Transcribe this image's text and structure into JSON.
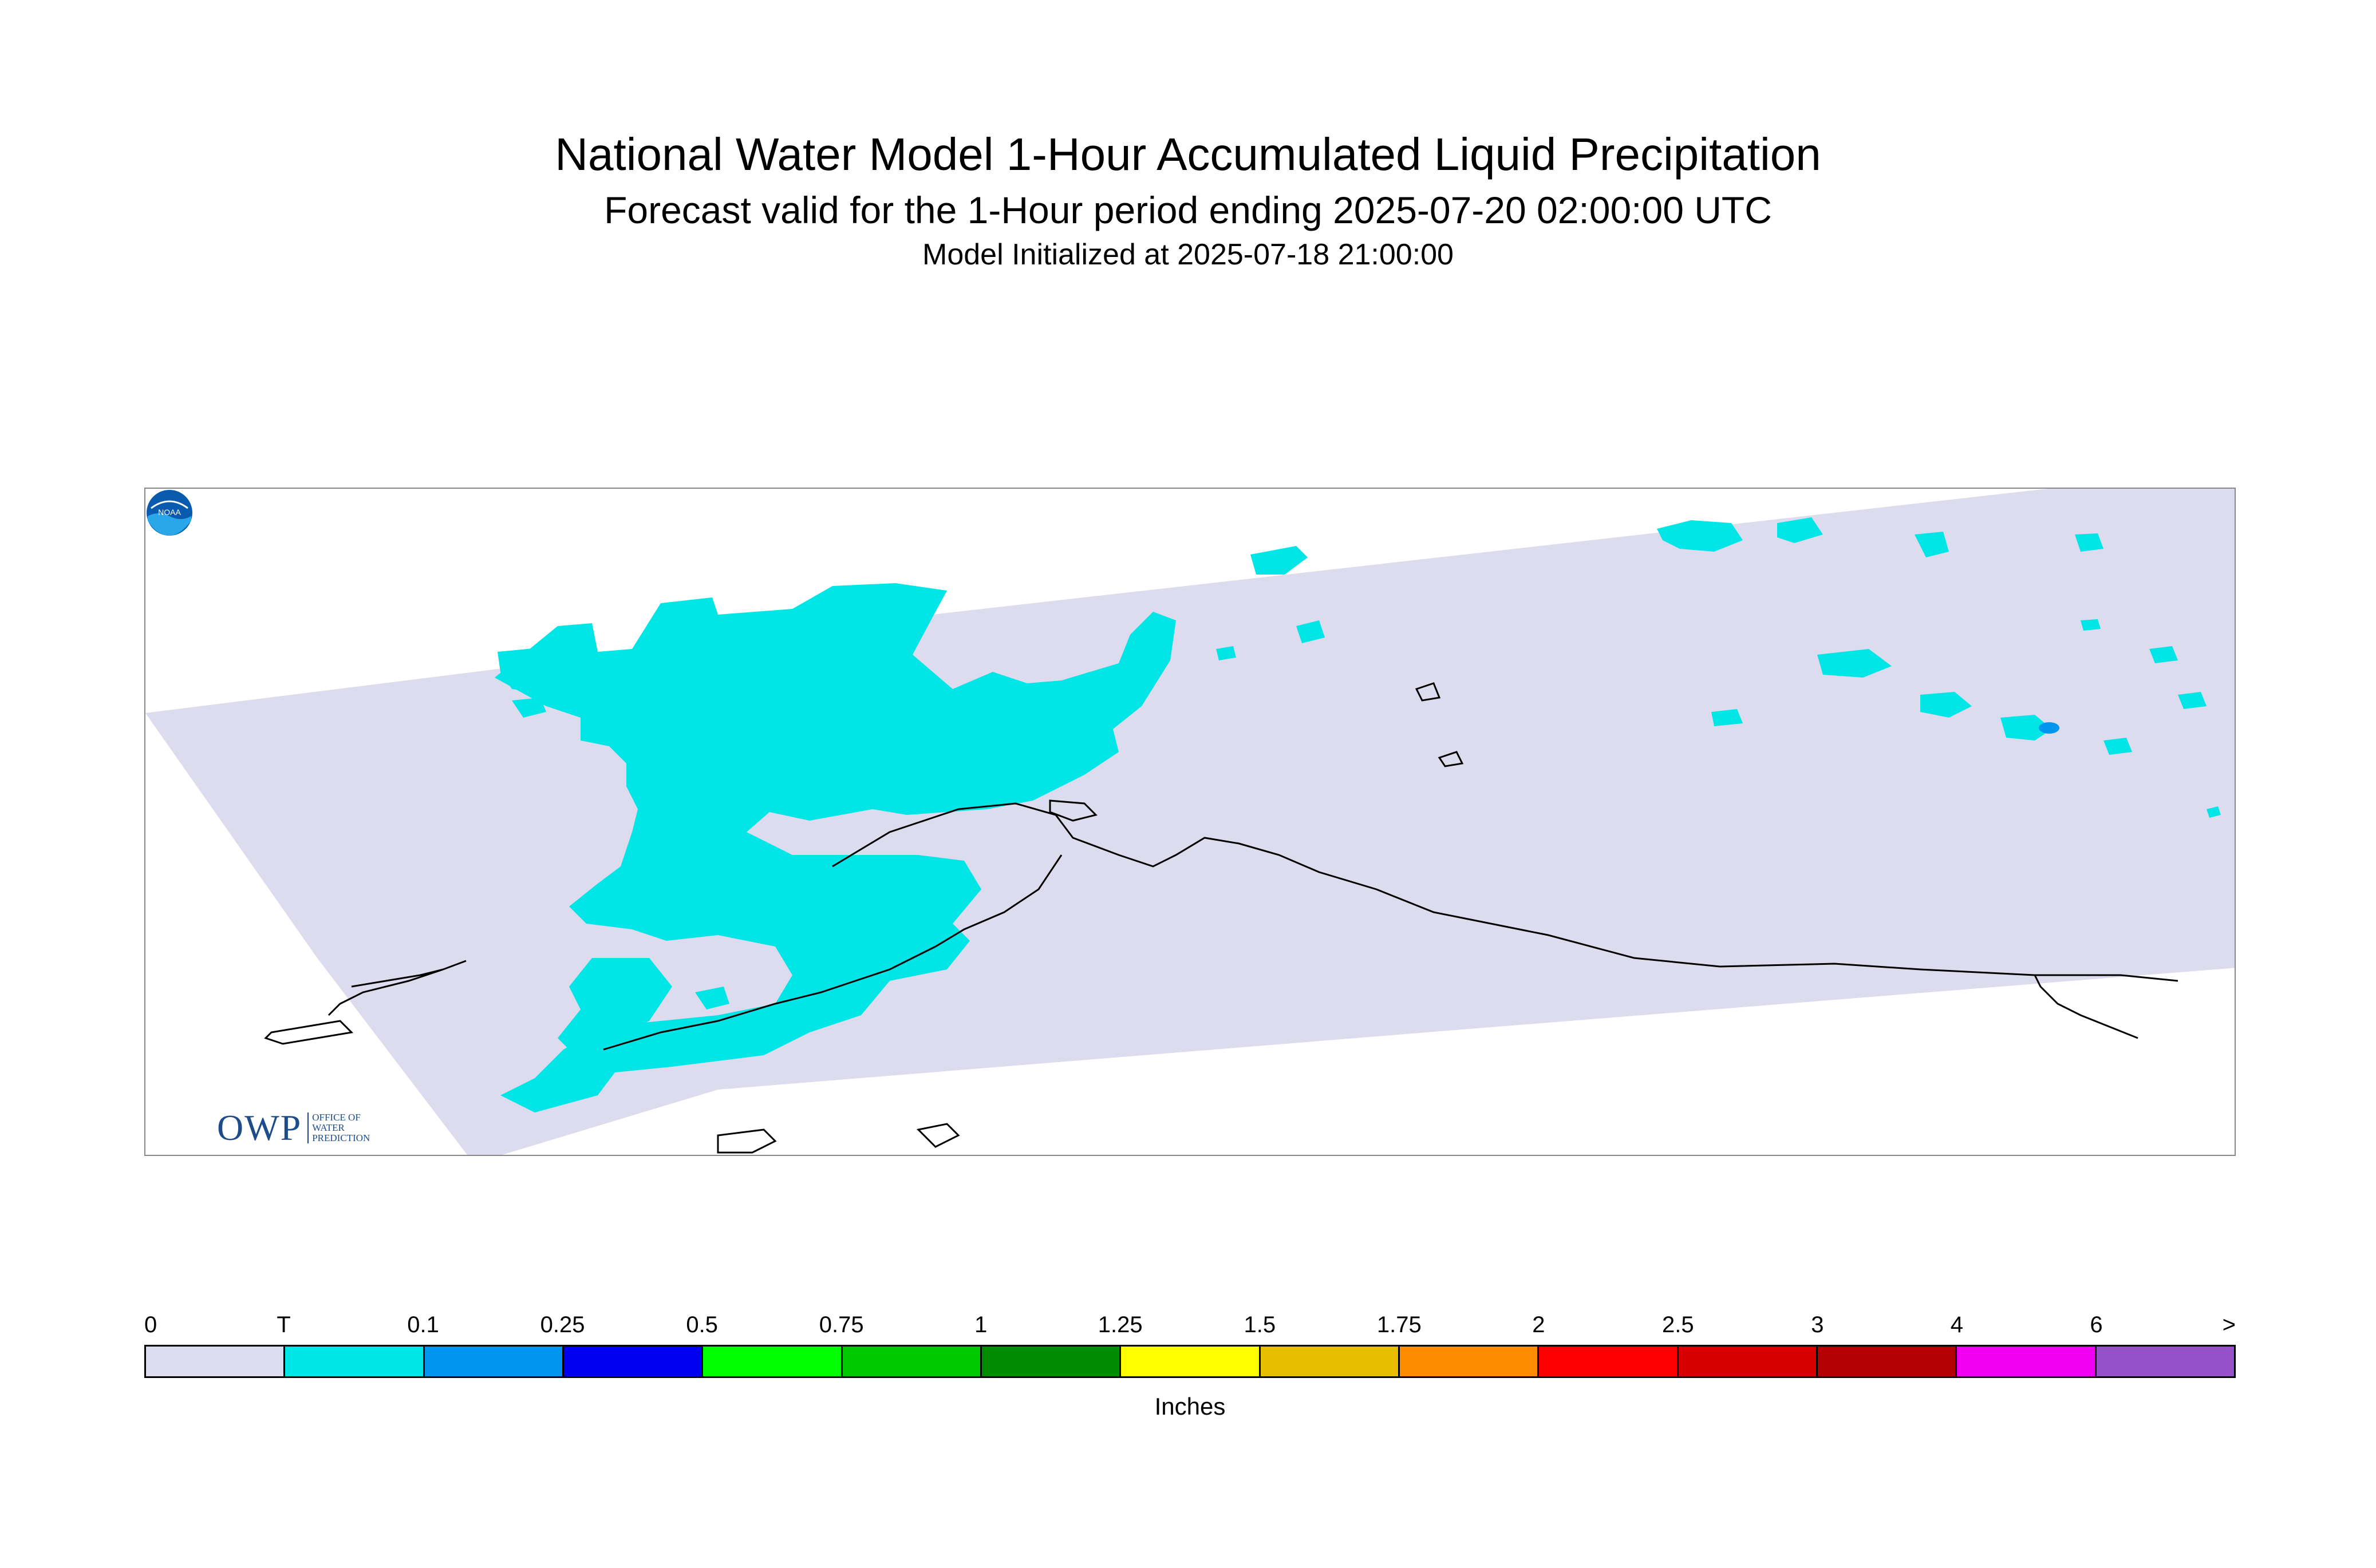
{
  "header": {
    "title": "National Water Model 1-Hour Accumulated Liquid Precipitation",
    "subtitle": "Forecast valid for the 1-Hour period ending 2025-07-20 02:00:00 UTC",
    "initialized": "Model Initialized at 2025-07-18 21:00:00"
  },
  "map": {
    "region": "Alaska",
    "background_color": "#dcdcee",
    "precip_color_trace": "#00e5e6",
    "precip_color_light": "#0096f0",
    "coastline_color": "#000000"
  },
  "logos": {
    "owp_letters": "OWP",
    "owp_lines": [
      "OFFICE OF",
      "WATER",
      "PREDICTION"
    ],
    "noaa_text": "NOAA",
    "noaa_icon": "noaa-logo-icon"
  },
  "legend": {
    "units": "Inches",
    "tick_labels": [
      "0",
      "T",
      "0.1",
      "0.25",
      "0.5",
      "0.75",
      "1",
      "1.25",
      "1.5",
      "1.75",
      "2",
      "2.5",
      "3",
      "4",
      "6",
      ">"
    ],
    "colors": [
      "#dcdcee",
      "#00e5e6",
      "#0096f0",
      "#0000f0",
      "#00ff00",
      "#00c800",
      "#008c00",
      "#ffff00",
      "#e6be00",
      "#ff8c00",
      "#ff0000",
      "#d70000",
      "#b40000",
      "#f000f0",
      "#9650c8"
    ]
  }
}
